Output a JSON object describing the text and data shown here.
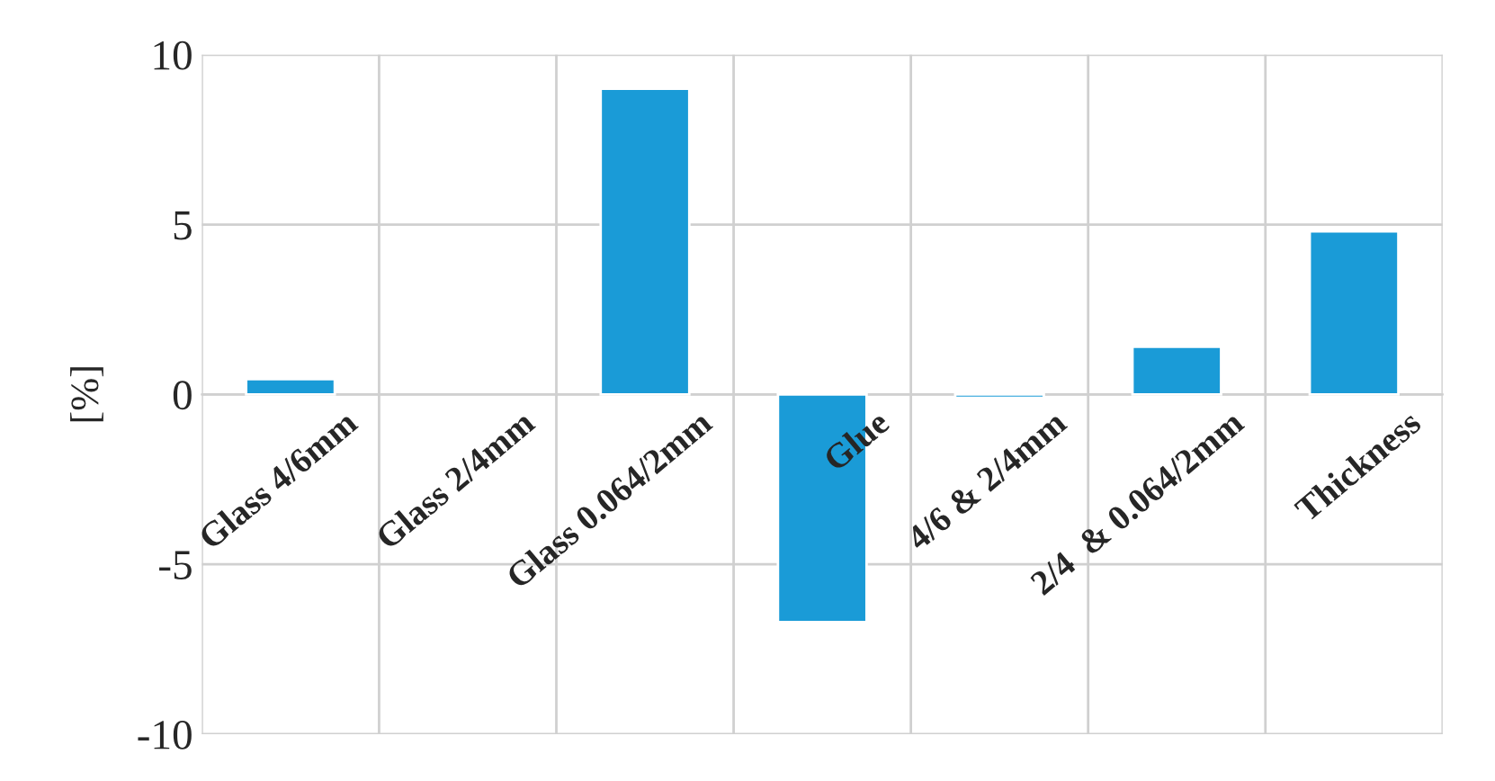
{
  "chart_data": {
    "type": "bar",
    "ylabel": "[%]",
    "categories": [
      "Glass 4/6mm",
      "Glass 2/4mm",
      "Glass 0.064/2mm",
      "Glue",
      "4/6 & 2/4mm",
      "2/4  & 0.064/2mm",
      "Thickness"
    ],
    "values": [
      0.45,
      null,
      9.0,
      -6.7,
      -0.1,
      1.4,
      4.8
    ],
    "color": "#1a9bd7",
    "ylim": [
      -10,
      10
    ],
    "yticks": [
      -10,
      -5,
      0,
      5,
      10
    ],
    "grid": true
  }
}
